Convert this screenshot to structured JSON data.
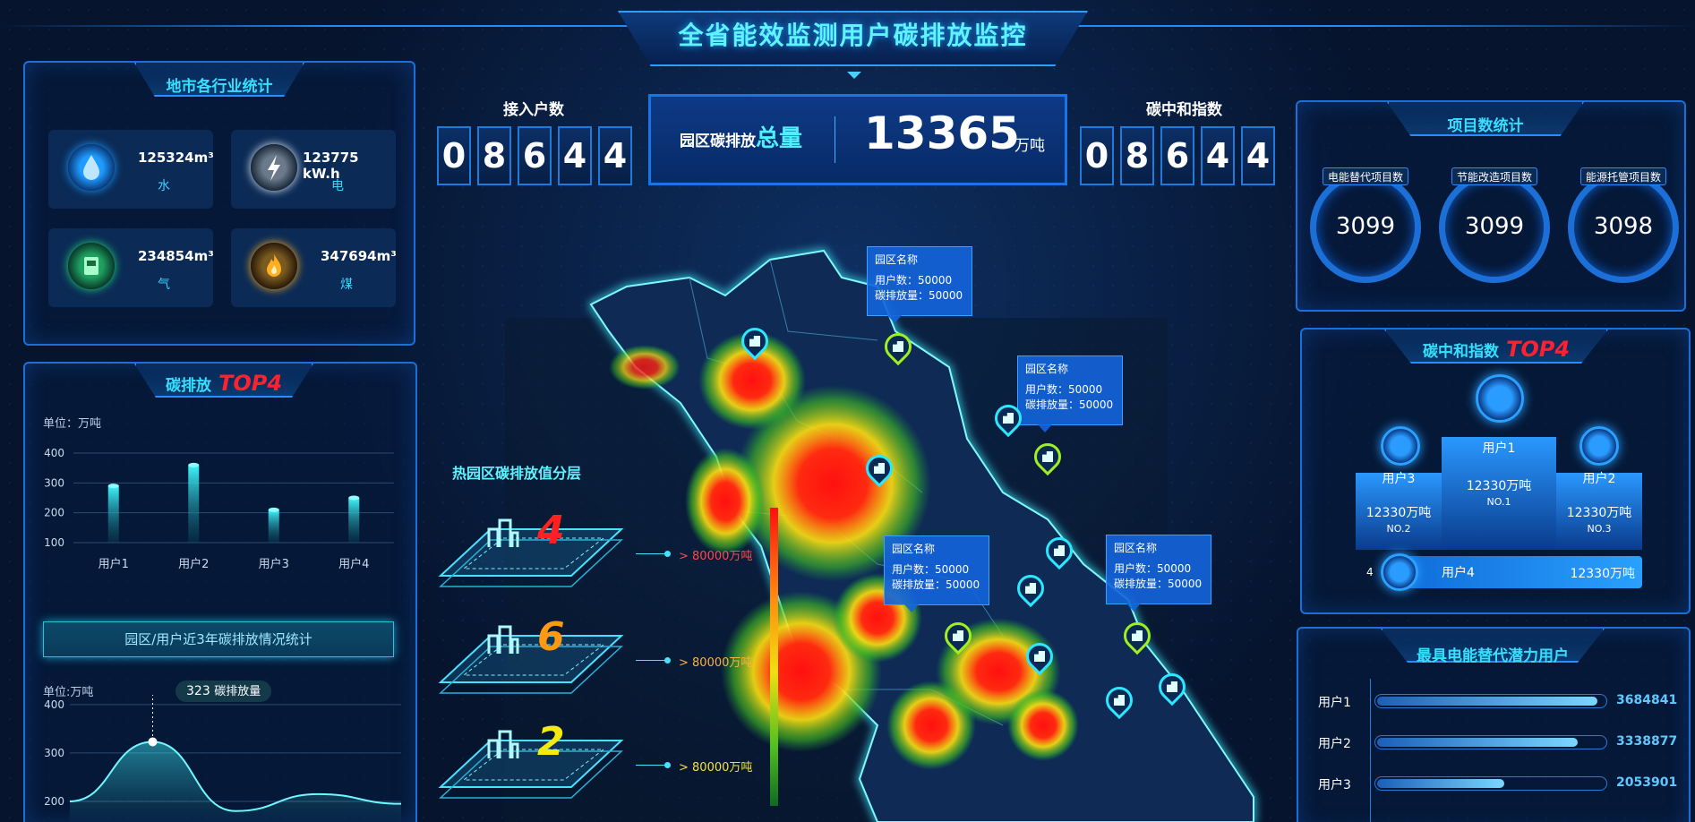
{
  "title": "全省能效监测用户碳排放监控",
  "industry_stats": {
    "heading": "地市各行业统计",
    "items": [
      {
        "value": "125324m³",
        "label": "水",
        "icon": "water-drop-icon",
        "color": "#1e9bff"
      },
      {
        "value": "123775 kW.h",
        "label": "电",
        "icon": "lightning-icon",
        "color": "#e8f4ff"
      },
      {
        "value": "234854m³",
        "label": "气",
        "icon": "gas-icon",
        "color": "#22e07a"
      },
      {
        "value": "347694m³",
        "label": "煤",
        "icon": "flame-icon",
        "color": "#ffb020"
      }
    ]
  },
  "carbon_top4": {
    "heading": "碳排放",
    "top_tag": "TOP4",
    "unit": "单位：万吨",
    "chart_data": {
      "type": "bar",
      "categories": [
        "用户1",
        "用户2",
        "用户3",
        "用户4"
      ],
      "values": [
        290,
        360,
        210,
        250
      ],
      "ylim": [
        100,
        400
      ],
      "yticks": [
        "400",
        "300",
        "200",
        "100"
      ]
    }
  },
  "trend": {
    "banner": "园区/用户近3年碳排放情况统计",
    "unit": "单位:万吨",
    "tooltip_value": "323",
    "tooltip_label": "碳排放量",
    "yticks": [
      "400",
      "300",
      "200"
    ],
    "chart_data": {
      "type": "area",
      "x": [
        1,
        2,
        3,
        4,
        5
      ],
      "values": [
        200,
        323,
        180,
        215,
        195
      ],
      "ylim": [
        150,
        420
      ]
    }
  },
  "access": {
    "label": "接入户数",
    "digits": [
      "0",
      "8",
      "6",
      "4",
      "4"
    ]
  },
  "neutral_index": {
    "label": "碳中和指数",
    "digits": [
      "0",
      "8",
      "6",
      "4",
      "4"
    ]
  },
  "total": {
    "label": "园区碳排放",
    "label_em": "总量",
    "value": "13365",
    "unit": "万吨"
  },
  "layers": {
    "heading": "热园区碳排放值分层",
    "items": [
      {
        "num": "4",
        "text": "> 80000万吨",
        "color": "#ff2020",
        "text_color": "#ff4a4a"
      },
      {
        "num": "6",
        "text": "> 80000万吨",
        "color": "#ff9a10",
        "text_color": "#ffb040"
      },
      {
        "num": "2",
        "text": "> 80000万吨",
        "color": "#f4ea10",
        "text_color": "#f4e040"
      }
    ]
  },
  "map_popups": [
    {
      "name": "园区名称",
      "users": "用户数：50000",
      "emission": "碳排放量：50000"
    },
    {
      "name": "园区名称",
      "users": "用户数：50000",
      "emission": "碳排放量：50000"
    },
    {
      "name": "园区名称",
      "users": "用户数：50000",
      "emission": "碳排放量：50000"
    },
    {
      "name": "园区名称",
      "users": "用户数：50000",
      "emission": "碳排放量：50000"
    }
  ],
  "projects": {
    "heading": "项目数统计",
    "items": [
      {
        "label": "电能替代项目数",
        "value": "3099"
      },
      {
        "label": "节能改造项目数",
        "value": "3099"
      },
      {
        "label": "能源托管项目数",
        "value": "3098"
      }
    ]
  },
  "neutral_top4": {
    "heading": "碳中和指数",
    "top_tag": "TOP4",
    "first": {
      "name": "用户1",
      "value": "12330万吨",
      "rank": "NO.1"
    },
    "second": {
      "name": "用户3",
      "value": "12330万吨",
      "rank": "NO.2"
    },
    "third": {
      "name": "用户2",
      "value": "12330万吨",
      "rank": "NO.3"
    },
    "fourth": {
      "index": "4",
      "name": "用户4",
      "value": "12330万吨"
    }
  },
  "potential": {
    "heading": "最具电能替代潜力用户",
    "items": [
      {
        "label": "用户1",
        "value": "3684841",
        "fraction": 0.97
      },
      {
        "label": "用户2",
        "value": "3338877",
        "fraction": 0.88
      },
      {
        "label": "用户3",
        "value": "2053901",
        "fraction": 0.56
      }
    ]
  }
}
